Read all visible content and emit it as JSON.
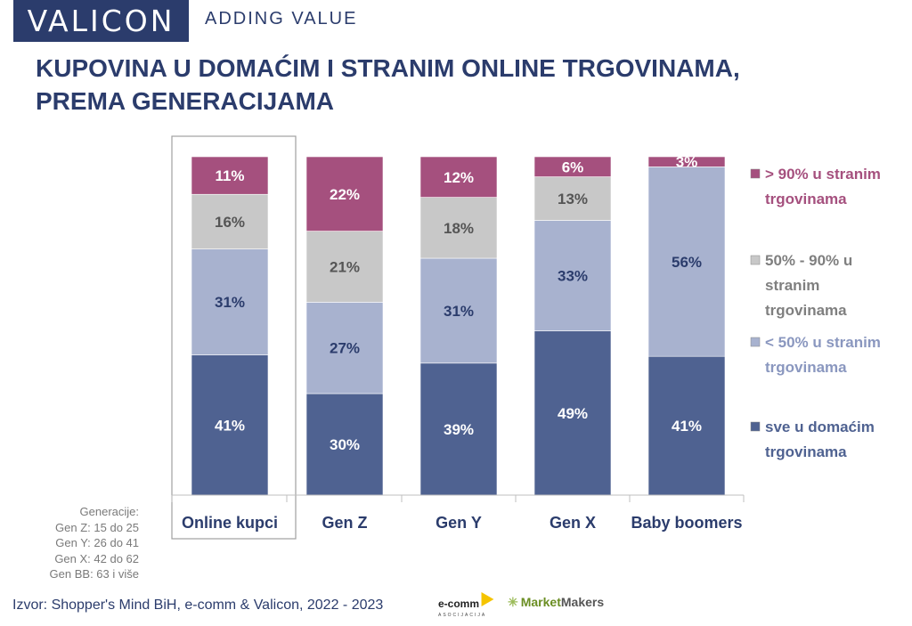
{
  "header": {
    "logo": "VALICON",
    "tagline": "ADDING VALUE",
    "title_line1": "KUPOVINA U DOMAĆIM I STRANIM ONLINE TRGOVINAMA,",
    "title_line2": "PREMA GENERACIJAMA"
  },
  "colors": {
    "foreign_over_90": "#a5507e",
    "foreign_50_90": "#c8c8c8",
    "foreign_under_50": "#a8b2cf",
    "domestic_all": "#4f6291",
    "highlight_border": "#a0a0a0",
    "text_dark": "#2b3c6c"
  },
  "chart_data": {
    "type": "bar",
    "stacked": true,
    "unit": "%",
    "categories": [
      "Online kupci",
      "Gen Z",
      "Gen Y",
      "Gen X",
      "Baby boomers"
    ],
    "highlighted_category": "Online kupci",
    "series": [
      {
        "name": "sve u domaćim trgovinama",
        "color": "#4f6291",
        "values": [
          41,
          30,
          39,
          49,
          41
        ],
        "labels": [
          "41%",
          "30%",
          "39%",
          "49%",
          "41%"
        ]
      },
      {
        "name": "< 50% u stranim trgovinama",
        "color": "#a8b2cf",
        "values": [
          31,
          27,
          31,
          33,
          56
        ],
        "labels": [
          "31%",
          "27%",
          "31%",
          "33%",
          "56%"
        ]
      },
      {
        "name": "50% - 90% u stranim trgovinama",
        "color": "#c8c8c8",
        "values": [
          16,
          21,
          18,
          13,
          0
        ],
        "labels": [
          "16%",
          "21%",
          "18%",
          "13%",
          ""
        ]
      },
      {
        "name": "> 90% u stranim trgovinama",
        "color": "#a5507e",
        "values": [
          11,
          22,
          12,
          6,
          3
        ],
        "labels": [
          "11%",
          "22%",
          "12%",
          "6%",
          "3%"
        ]
      }
    ],
    "legend": {
      "placement": "right",
      "entries": [
        {
          "lines": [
            "> 90% u stranim",
            "trgovinama"
          ],
          "color": "#a5507e"
        },
        {
          "lines": [
            "50% - 90% u",
            "stranim",
            "trgovinama"
          ],
          "color": "#c8c8c8"
        },
        {
          "lines": [
            "< 50% u stranim",
            "trgovinama"
          ],
          "color": "#a8b2cf"
        },
        {
          "lines": [
            "sve u domaćim",
            "trgovinama"
          ],
          "color": "#4f6291"
        }
      ]
    },
    "ylim": [
      0,
      100
    ],
    "grid": false
  },
  "generations": {
    "heading": "Generacije:",
    "lines": [
      "Gen Z: 15 do 25",
      "Gen Y: 26 do 41",
      "Gen X: 42 do 62",
      "Gen BB: 63 i više"
    ]
  },
  "footer": {
    "source": "Izvor: Shopper's Mind BiH, e-comm & Valicon, 2022 - 2023",
    "ecomm_text": "e-comm",
    "ecomm_sub": "ASOCIJACIJA",
    "marketmakers_a": "Market",
    "marketmakers_b": "Makers"
  }
}
